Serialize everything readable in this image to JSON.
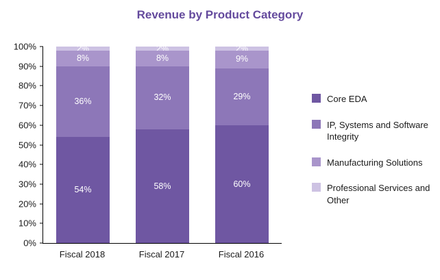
{
  "title": "Revenue by Product Category",
  "title_color": "#644a9d",
  "chart_data": {
    "type": "bar",
    "subtype": "stacked",
    "title": "Revenue by Product Category",
    "categories": [
      "Fiscal 2018",
      "Fiscal 2017",
      "Fiscal 2016"
    ],
    "series": [
      {
        "name": "Core EDA",
        "values": [
          54,
          58,
          60
        ],
        "color": "#6f57a2"
      },
      {
        "name": "IP, Systems and Software Integrity",
        "values": [
          36,
          32,
          29
        ],
        "color": "#8d77b8"
      },
      {
        "name": "Manufacturing Solutions",
        "values": [
          8,
          8,
          9
        ],
        "color": "#a995cb"
      },
      {
        "name": "Professional Services and Other",
        "values": [
          2,
          2,
          2
        ],
        "color": "#cdc2e3"
      }
    ],
    "data_label_format": "{v}%",
    "data_label_color": "#ffffff",
    "xlabel": "",
    "ylabel": "",
    "ylim": [
      0,
      100
    ],
    "ytick_step": 10,
    "ytick_suffix": "%",
    "grid": false,
    "legend_position": "right"
  }
}
